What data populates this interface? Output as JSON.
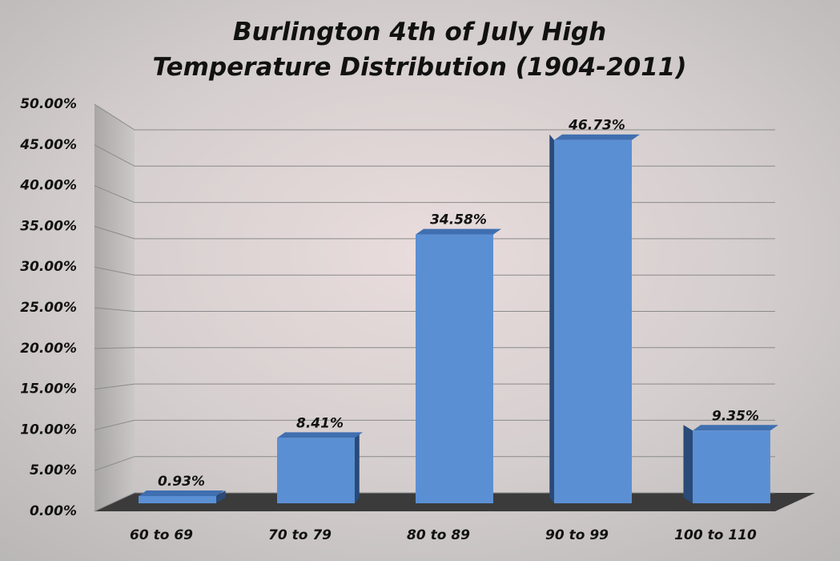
{
  "chart_data": {
    "type": "bar",
    "title": "Burlington 4th of July High Temperature Distribution (1904-2011)",
    "categories": [
      "60 to 69",
      "70 to 79",
      "80 to 89",
      "90 to 99",
      "100 to 110"
    ],
    "values": [
      0.93,
      8.41,
      34.58,
      46.73,
      9.35
    ],
    "value_labels": [
      "0.93%",
      "8.41%",
      "34.58%",
      "46.73%",
      "9.35%"
    ],
    "color": "#5b8fd4",
    "ylim": [
      0,
      50
    ],
    "yticks": [
      {
        "value": 0,
        "label": "0.00%"
      },
      {
        "value": 5,
        "label": "5.00%"
      },
      {
        "value": 10,
        "label": "10.00%"
      },
      {
        "value": 15,
        "label": "15.00%"
      },
      {
        "value": 20,
        "label": "20.00%"
      },
      {
        "value": 25,
        "label": "25.00%"
      },
      {
        "value": 30,
        "label": "30.00%"
      },
      {
        "value": 35,
        "label": "35.00%"
      },
      {
        "value": 40,
        "label": "40.00%"
      },
      {
        "value": 45,
        "label": "45.00%"
      },
      {
        "value": 50,
        "label": "50.00%"
      }
    ],
    "grid": true
  }
}
